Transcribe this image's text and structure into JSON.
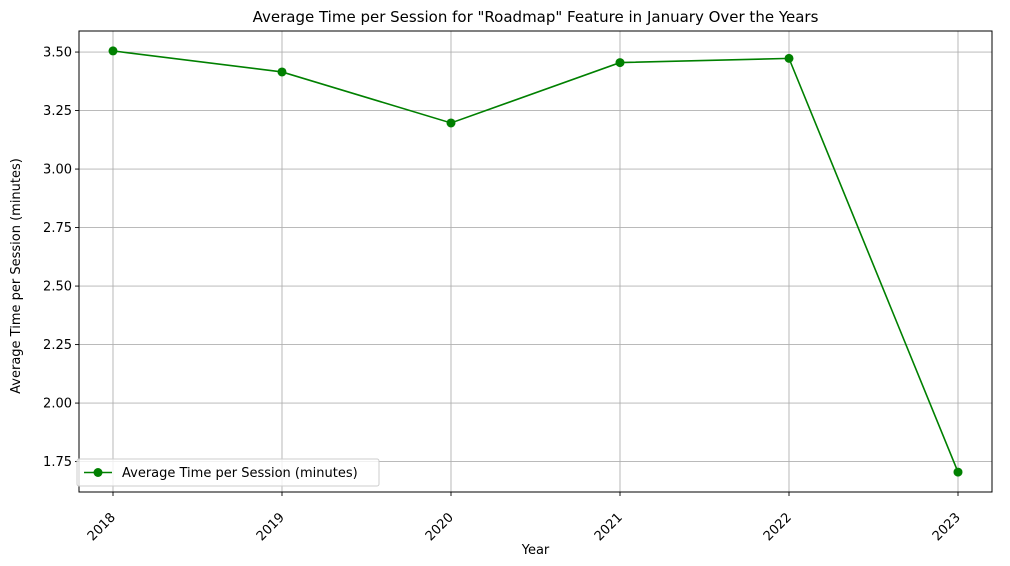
{
  "chart_data": {
    "type": "line",
    "title": "Average Time per Session for \"Roadmap\" Feature in January Over the Years",
    "xlabel": "Year",
    "ylabel": "Average Time per Session (minutes)",
    "categories": [
      "2018",
      "2019",
      "2020",
      "2021",
      "2022",
      "2023"
    ],
    "series": [
      {
        "name": "Average Time per Session (minutes)",
        "values": [
          3.505,
          3.415,
          3.197,
          3.455,
          3.473,
          1.705
        ],
        "color": "#008000",
        "marker": "circle"
      }
    ],
    "ylim": [
      1.62,
      3.59
    ],
    "yticks": [
      1.75,
      2.0,
      2.25,
      2.5,
      2.75,
      3.0,
      3.25,
      3.5
    ],
    "ytick_labels": [
      "1.75",
      "2.00",
      "2.25",
      "2.50",
      "2.75",
      "3.00",
      "3.25",
      "3.50"
    ],
    "grid": true,
    "legend_position": "lower-left",
    "xtick_rotation": 45
  }
}
